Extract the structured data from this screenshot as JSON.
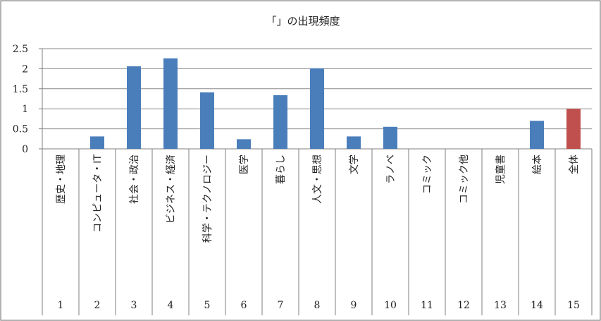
{
  "chart_data": {
    "type": "bar",
    "title": "「」の出現頻度",
    "xlabel": "",
    "ylabel": "",
    "ylim": [
      0,
      2.5
    ],
    "yticks": [
      "0",
      "0.5",
      "1",
      "1.5",
      "2",
      "2.5"
    ],
    "grid": true,
    "legend": "none",
    "categories": [
      "歴史・地理",
      "コンピュータ・IT",
      "社会・政治",
      "ビジネス・経済",
      "科学・テクノロジー",
      "医学",
      "暮らし",
      "人文・思想",
      "文学",
      "ラノベ",
      "コミック",
      "コミック他",
      "児童書",
      "絵本",
      "全体"
    ],
    "numbers": [
      "1",
      "2",
      "3",
      "4",
      "5",
      "6",
      "7",
      "8",
      "9",
      "10",
      "11",
      "12",
      "13",
      "14",
      "15"
    ],
    "values": [
      0,
      0.31,
      2.06,
      2.26,
      1.41,
      0.24,
      1.34,
      2.01,
      0.31,
      0.55,
      0,
      0,
      0,
      0.7,
      1.0
    ],
    "colors": {
      "default_bar": "#4a7ebb",
      "highlight_bar": "#c0504d",
      "gridline": "#8a8a8a",
      "axis": "#7f7f7f"
    },
    "highlight_index": 14
  }
}
